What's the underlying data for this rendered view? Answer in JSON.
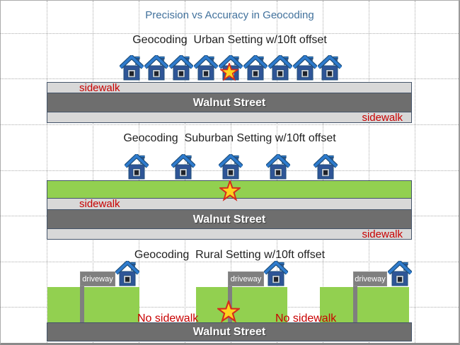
{
  "title": "Precision vs Accuracy in Geocoding",
  "urban": {
    "title": "Geocoding  Urban Setting w/10ft offset",
    "sidewalk_top_label": "sidewalk",
    "sidewalk_bottom_label": "sidewalk",
    "street_name": "Walnut Street",
    "house_count": 9
  },
  "suburban": {
    "title": "Geocoding  Suburban Setting w/10ft offset",
    "sidewalk_top_label": "sidewalk",
    "sidewalk_bottom_label": "sidewalk",
    "street_name": "Walnut Street",
    "house_count": 5
  },
  "rural": {
    "title": "Geocoding  Rural Setting w/10ft offset",
    "no_sidewalk_left_label": "No sidewalk",
    "no_sidewalk_right_label": "No sidewalk",
    "street_name": "Walnut Street",
    "driveway_label_1": "driveway",
    "driveway_label_2": "driveway",
    "driveway_label_3": "driveway",
    "house_count": 3
  },
  "icons": {
    "house": "house-icon",
    "star": "star-marker-icon"
  },
  "colors": {
    "title_blue": "#41719C",
    "label_red": "#C80000",
    "grass_green": "#92D050",
    "road_gray": "#6E6E6E",
    "sidewalk_gray": "#D8D8D8",
    "border_navy": "#44546A",
    "driveway_gray": "#7F7F7F",
    "house_body_blue": "#2F5597",
    "house_roof_blue": "#2E7BCE",
    "star_yellow": "#FFD21E",
    "star_red": "#D42B1E"
  }
}
